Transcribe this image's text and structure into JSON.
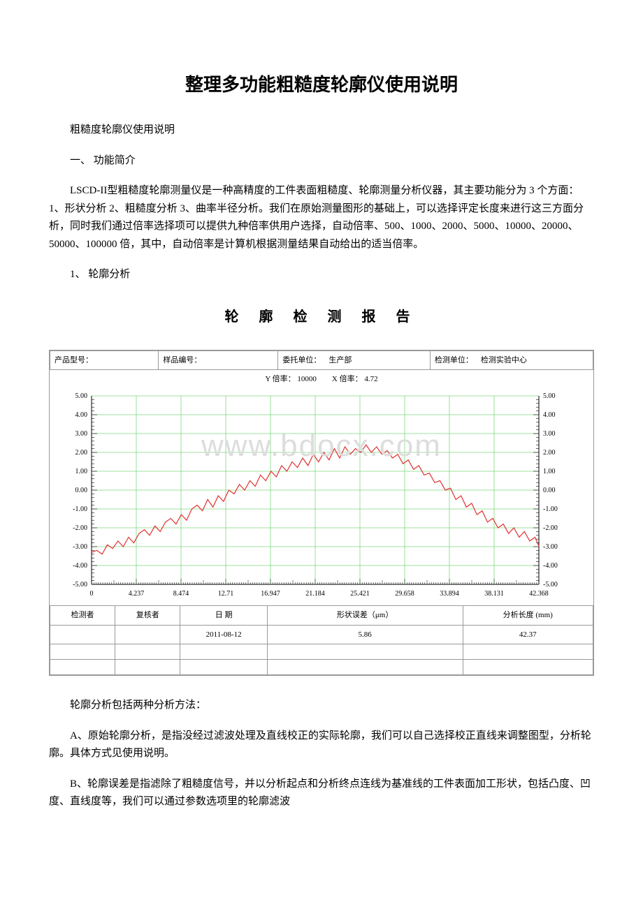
{
  "title": "整理多功能粗糙度轮廓仪使用说明",
  "p1": "粗糙度轮廓仪使用说明",
  "p2": "一、 功能简介",
  "p3": "LSCD-II型粗糙度轮廓测量仪是一种高精度的工件表面粗糙度、轮廓测量分析仪器，其主要功能分为 3 个方面：1、形状分析 2、粗糙度分析 3、曲率半径分析。我们在原始测量图形的基础上，可以选择评定长度来进行这三方面分析，同时我们通过倍率选择项可以提供九种倍率供用户选择，自动倍率、500、1000、2000、5000、10000、20000、50000、100000 倍，其中，自动倍率是计算机根据测量结果自动给出的适当倍率。",
  "p4": "1、 轮廓分析",
  "p5": "轮廓分析包括两种分析方法：",
  "p6": "A、原始轮廓分析，是指没经过滤波处理及直线校正的实际轮廓，我们可以自己选择校正直线来调整图型，分析轮廓。具体方式见使用说明。",
  "p7": "B、轮廓误差是指滤除了粗糙度信号，并以分析起点和分析终点连线为基准线的工件表面加工形状，包括凸度、凹度、直线度等，我们可以通过参数选项里的轮廓滤波",
  "chart": {
    "title": "轮 廓 检 测 报 告",
    "header": {
      "product_label": "产品型号：",
      "product_value": "",
      "sample_label": "样品编号：",
      "sample_value": "",
      "client_label": "委托单位：",
      "client_value": "生产部",
      "dept_label": "检测单位：",
      "dept_value": "检测实验中心"
    },
    "rate_line": {
      "y_rate_label": "Y 倍率：",
      "y_rate_value": "10000",
      "x_rate_label": "X 倍率：",
      "x_rate_value": "4.72"
    },
    "watermark": "www.bdocx.com",
    "axes": {
      "y_min": -5,
      "y_max": 5,
      "y_step": 1,
      "y_ticks": [
        "5.00",
        "4.00",
        "3.00",
        "2.00",
        "1.00",
        "0.00",
        "-1.00",
        "-2.00",
        "-3.00",
        "-4.00",
        "-5.00"
      ],
      "x_min": 0,
      "x_max": 42.368,
      "x_ticks": [
        "0",
        "4.237",
        "8.474",
        "12.71",
        "16.947",
        "21.184",
        "25.421",
        "29.658",
        "33.894",
        "38.131",
        "42.368"
      ],
      "grid_color": "#7fd97f",
      "axis_color": "#000000",
      "curve_color": "#e03030",
      "label_color": "#000000",
      "plot_bg": "#ffffff"
    },
    "curve": [
      [
        0,
        -3.3
      ],
      [
        0.5,
        -3.2
      ],
      [
        1,
        -3.4
      ],
      [
        1.5,
        -2.9
      ],
      [
        2,
        -3.1
      ],
      [
        2.5,
        -2.7
      ],
      [
        3,
        -3.0
      ],
      [
        3.5,
        -2.5
      ],
      [
        4,
        -2.8
      ],
      [
        4.5,
        -2.3
      ],
      [
        5,
        -2.1
      ],
      [
        5.5,
        -2.4
      ],
      [
        6,
        -1.9
      ],
      [
        6.5,
        -2.2
      ],
      [
        7,
        -1.7
      ],
      [
        7.5,
        -1.5
      ],
      [
        8,
        -1.8
      ],
      [
        8.5,
        -1.3
      ],
      [
        9,
        -1.6
      ],
      [
        9.5,
        -1.0
      ],
      [
        10,
        -0.8
      ],
      [
        10.5,
        -1.1
      ],
      [
        11,
        -0.5
      ],
      [
        11.5,
        -0.9
      ],
      [
        12,
        -0.3
      ],
      [
        12.5,
        -0.6
      ],
      [
        13,
        0.0
      ],
      [
        13.5,
        -0.2
      ],
      [
        14,
        0.3
      ],
      [
        14.5,
        0.0
      ],
      [
        15,
        0.5
      ],
      [
        15.5,
        0.2
      ],
      [
        16,
        0.8
      ],
      [
        16.5,
        0.5
      ],
      [
        17,
        1.0
      ],
      [
        17.5,
        0.7
      ],
      [
        18,
        1.3
      ],
      [
        18.5,
        1.0
      ],
      [
        19,
        1.5
      ],
      [
        19.5,
        1.2
      ],
      [
        20,
        1.7
      ],
      [
        20.5,
        1.3
      ],
      [
        21,
        1.9
      ],
      [
        21.5,
        1.5
      ],
      [
        22,
        2.0
      ],
      [
        22.5,
        1.6
      ],
      [
        23,
        2.2
      ],
      [
        23.5,
        1.7
      ],
      [
        24,
        2.3
      ],
      [
        24.5,
        1.9
      ],
      [
        25,
        2.2
      ],
      [
        25.5,
        2.0
      ],
      [
        26,
        2.4
      ],
      [
        26.5,
        2.0
      ],
      [
        27,
        2.3
      ],
      [
        27.5,
        1.9
      ],
      [
        28,
        2.1
      ],
      [
        28.5,
        1.7
      ],
      [
        29,
        1.9
      ],
      [
        29.5,
        1.4
      ],
      [
        30,
        1.6
      ],
      [
        30.5,
        1.1
      ],
      [
        31,
        1.3
      ],
      [
        31.5,
        0.8
      ],
      [
        32,
        0.9
      ],
      [
        32.5,
        0.4
      ],
      [
        33,
        0.5
      ],
      [
        33.5,
        0.0
      ],
      [
        34,
        0.1
      ],
      [
        34.5,
        -0.5
      ],
      [
        35,
        -0.3
      ],
      [
        35.5,
        -0.9
      ],
      [
        36,
        -0.7
      ],
      [
        36.5,
        -1.3
      ],
      [
        37,
        -1.1
      ],
      [
        37.5,
        -1.7
      ],
      [
        38,
        -1.5
      ],
      [
        38.5,
        -2.0
      ],
      [
        39,
        -1.8
      ],
      [
        39.5,
        -2.3
      ],
      [
        40,
        -2.0
      ],
      [
        40.5,
        -2.5
      ],
      [
        41,
        -2.2
      ],
      [
        41.5,
        -2.7
      ],
      [
        42,
        -2.5
      ],
      [
        42.4,
        -3.0
      ]
    ],
    "footer": {
      "h1": "检测者",
      "h2": "复核者",
      "h3": "日  期",
      "h4": "形状误差（μm）",
      "h5": "分析长度 (mm)",
      "v3": "2011-08-12",
      "v4": "5.86",
      "v5": "42.37"
    }
  }
}
